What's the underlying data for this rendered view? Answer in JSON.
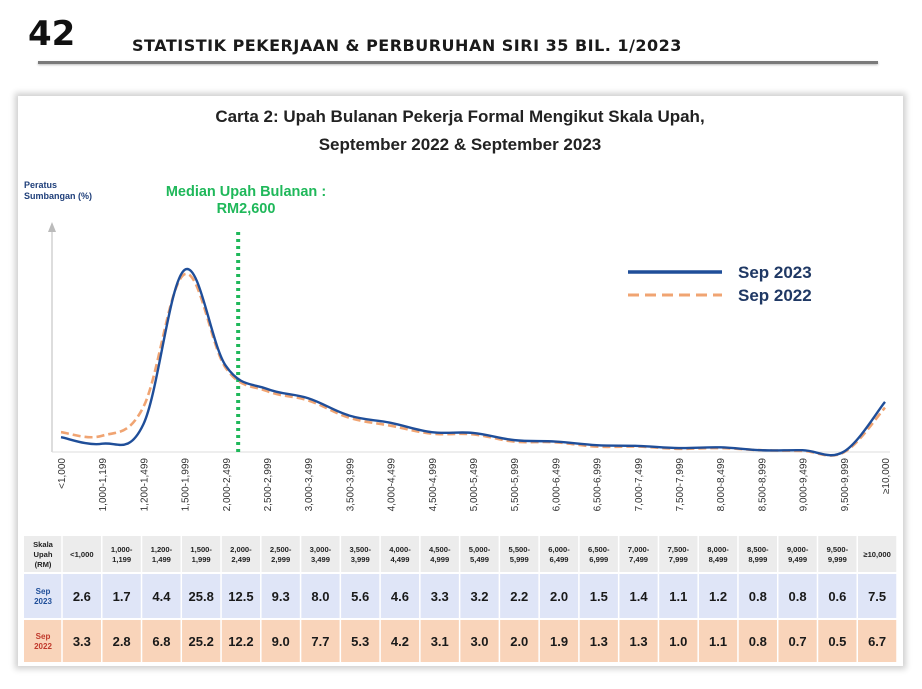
{
  "page": {
    "number": "42",
    "header": "STATISTIK PEKERJAAN & PERBURUHAN SIRI 35 BIL. 1/2023"
  },
  "colors": {
    "sep2023": "#1f4e99",
    "sep2022": "#f0a472",
    "median": "#1fb85a",
    "row2023_bg": "#dfe5f7",
    "row2022_bg": "#f9d4ba",
    "header_bg": "#ececec"
  },
  "chart_data": {
    "type": "line",
    "title_line1": "Carta 2: Upah Bulanan Pekerja Formal Mengikut Skala Upah,",
    "title_line2": "September 2022 & September 2023",
    "ylabel_line1": "Peratus",
    "ylabel_line2": "Sumbangan (%)",
    "median_label_line1": "Median Upah Bulanan :",
    "median_label_line2": "RM2,600",
    "median_position_category_index": 4.3,
    "categories": [
      "<1,000",
      "1,000-1,199",
      "1,200-1,499",
      "1,500-1,999",
      "2,000-2,499",
      "2,500-2,999",
      "3,000-3,499",
      "3,500-3,999",
      "4,000-4,499",
      "4,500-4,999",
      "5,000-5,499",
      "5,500-5,999",
      "6,000-6,499",
      "6,500-6,999",
      "7,000-7,499",
      "7,500-7,999",
      "8,000-8,499",
      "8,500-8,999",
      "9,000-9,499",
      "9,500-9,999",
      "≥10,000"
    ],
    "table_header_label": "Skala Upah (RM)",
    "table_categories": [
      [
        "<1,000"
      ],
      [
        "1,000-",
        "1,199"
      ],
      [
        "1,200-",
        "1,499"
      ],
      [
        "1,500-",
        "1,999"
      ],
      [
        "2,000-",
        "2,499"
      ],
      [
        "2,500-",
        "2,999"
      ],
      [
        "3,000-",
        "3,499"
      ],
      [
        "3,500-",
        "3,999"
      ],
      [
        "4,000-",
        "4,499"
      ],
      [
        "4,500-",
        "4,999"
      ],
      [
        "5,000-",
        "5,499"
      ],
      [
        "5,500-",
        "5,999"
      ],
      [
        "6,000-",
        "6,499"
      ],
      [
        "6,500-",
        "6,999"
      ],
      [
        "7,000-",
        "7,499"
      ],
      [
        "7,500-",
        "7,999"
      ],
      [
        "8,000-",
        "8,499"
      ],
      [
        "8,500-",
        "8,999"
      ],
      [
        "9,000-",
        "9,499"
      ],
      [
        "9,500-",
        "9,999"
      ],
      [
        "≥10,000"
      ]
    ],
    "series": [
      {
        "name": "Sep 2023",
        "row_label": "Sep 2023",
        "style": "solid",
        "values": [
          2.6,
          1.7,
          4.4,
          25.8,
          12.5,
          9.3,
          8.0,
          5.6,
          4.6,
          3.3,
          3.2,
          2.2,
          2.0,
          1.5,
          1.4,
          1.1,
          1.2,
          0.8,
          0.8,
          0.6,
          7.5
        ]
      },
      {
        "name": "Sep 2022",
        "row_label": "Sep 2022",
        "style": "dashed",
        "values": [
          3.3,
          2.8,
          6.8,
          25.2,
          12.2,
          9.0,
          7.7,
          5.3,
          4.2,
          3.1,
          3.0,
          2.0,
          1.9,
          1.3,
          1.3,
          1.0,
          1.1,
          0.8,
          0.7,
          0.5,
          6.7
        ]
      }
    ],
    "ylim": [
      0,
      28
    ],
    "legend_position": "top-right"
  }
}
